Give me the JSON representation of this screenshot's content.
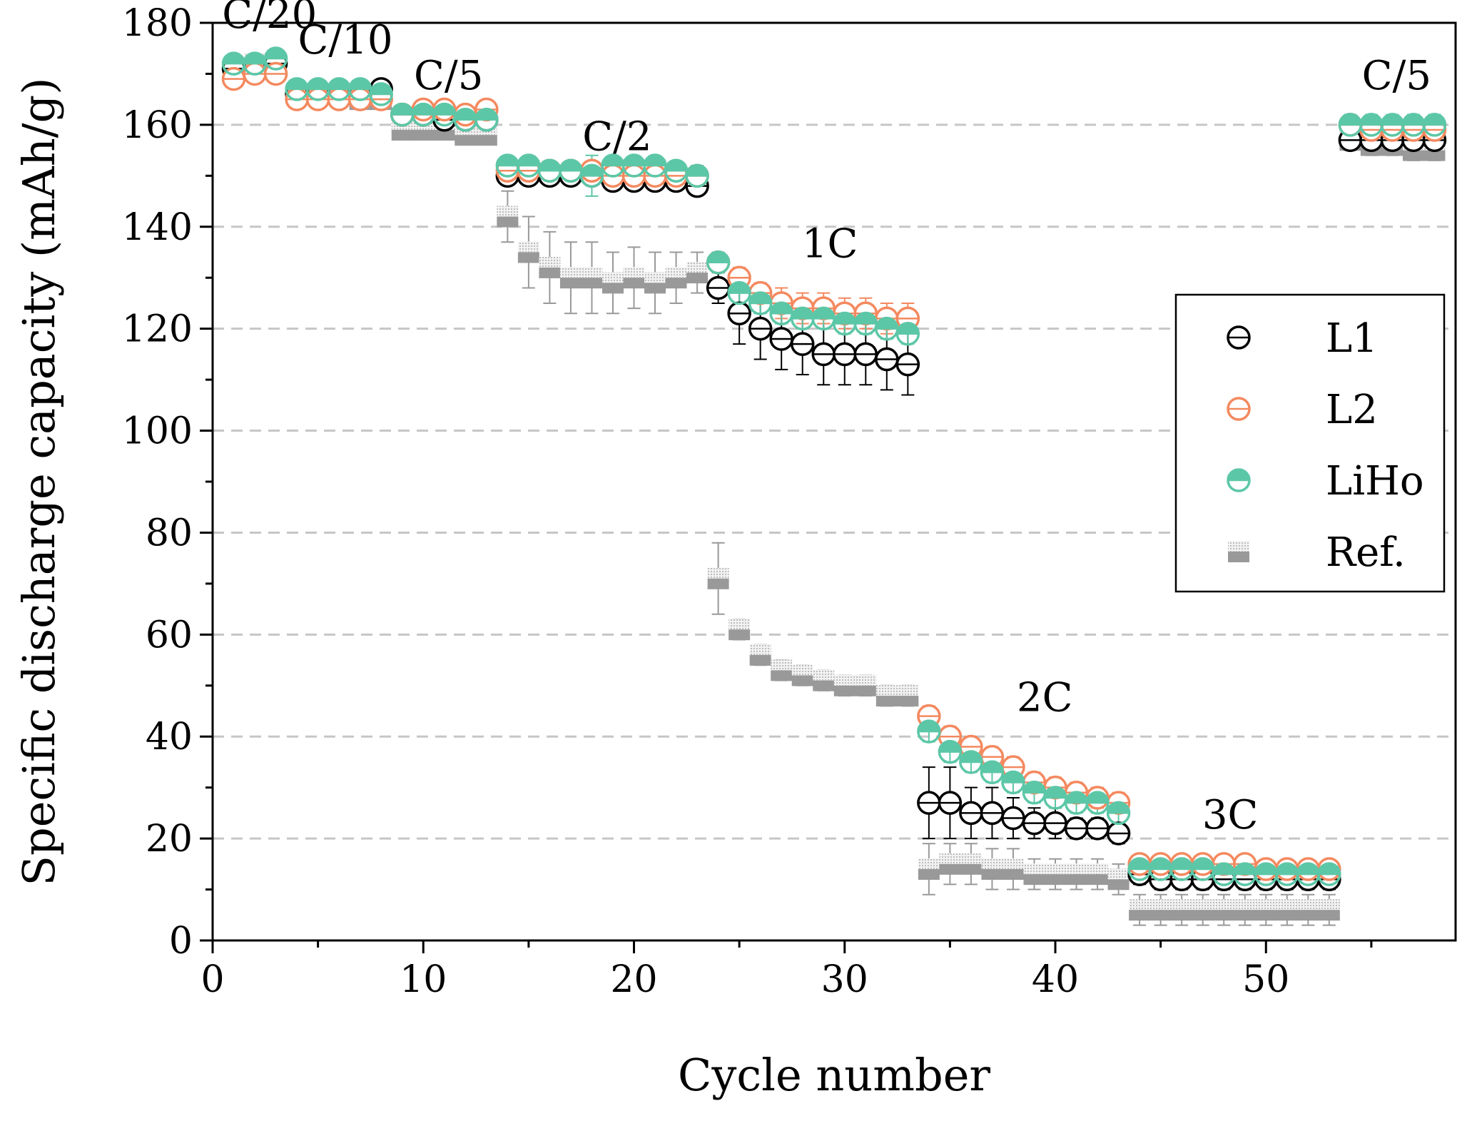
{
  "chart_data": {
    "type": "scatter",
    "xlabel": "Cycle number",
    "ylabel": "Specific discharge capacity (mAh/g)",
    "xlim": [
      0,
      59
    ],
    "ylim": [
      0,
      180
    ],
    "xticks": [
      0,
      10,
      20,
      30,
      40,
      50
    ],
    "yticks": [
      0,
      20,
      40,
      60,
      80,
      100,
      120,
      140,
      160,
      180
    ],
    "grid": "horizontal dashed",
    "legend_position": "right",
    "rate_labels": [
      {
        "text": "C/20",
        "x": 2.7,
        "y": 179
      },
      {
        "text": "C/10",
        "x": 6.3,
        "y": 174
      },
      {
        "text": "C/5",
        "x": 11.2,
        "y": 167
      },
      {
        "text": "C/2",
        "x": 19.2,
        "y": 155
      },
      {
        "text": "1C",
        "x": 29.3,
        "y": 134
      },
      {
        "text": "2C",
        "x": 39.5,
        "y": 45
      },
      {
        "text": "3C",
        "x": 48.3,
        "y": 22
      },
      {
        "text": "C/5",
        "x": 56.2,
        "y": 167
      }
    ],
    "series": [
      {
        "name": "L1",
        "color": "#000000",
        "marker": "circle-open",
        "x": [
          1,
          2,
          3,
          4,
          5,
          6,
          7,
          8,
          9,
          10,
          11,
          12,
          13,
          14,
          15,
          16,
          17,
          18,
          19,
          20,
          21,
          22,
          23,
          24,
          25,
          26,
          27,
          28,
          29,
          30,
          31,
          32,
          33,
          34,
          35,
          36,
          37,
          38,
          39,
          40,
          41,
          42,
          43,
          44,
          45,
          46,
          47,
          48,
          49,
          50,
          51,
          52,
          53,
          54,
          55,
          56,
          57,
          58
        ],
        "values": [
          171,
          171,
          172,
          166,
          166,
          166,
          166,
          167,
          162,
          162,
          161,
          161,
          161,
          150,
          150,
          150,
          150,
          150,
          149,
          149,
          149,
          149,
          148,
          128,
          123,
          120,
          118,
          117,
          115,
          115,
          115,
          114,
          113,
          27,
          27,
          25,
          25,
          24,
          23,
          23,
          22,
          22,
          21,
          13,
          12,
          12,
          12,
          12,
          12,
          12,
          12,
          12,
          12,
          157,
          157,
          157,
          157,
          157
        ],
        "errors": [
          1,
          1,
          1,
          1,
          1,
          1,
          1,
          1,
          1,
          1,
          1,
          1,
          1,
          1,
          1,
          1,
          1,
          1,
          1,
          1,
          1,
          1,
          1,
          3,
          6,
          6,
          6,
          6,
          6,
          6,
          6,
          6,
          6,
          7,
          7,
          5,
          5,
          4,
          3,
          3,
          2,
          2,
          2,
          2,
          2,
          2,
          2,
          2,
          2,
          2,
          2,
          2,
          2,
          1,
          1,
          1,
          1,
          1
        ]
      },
      {
        "name": "L2",
        "color": "#f4895f",
        "marker": "circle-open",
        "x": [
          1,
          2,
          3,
          4,
          5,
          6,
          7,
          8,
          9,
          10,
          11,
          12,
          13,
          14,
          15,
          16,
          17,
          18,
          19,
          20,
          21,
          22,
          23,
          24,
          25,
          26,
          27,
          28,
          29,
          30,
          31,
          32,
          33,
          34,
          35,
          36,
          37,
          38,
          39,
          40,
          41,
          42,
          43,
          44,
          45,
          46,
          47,
          48,
          49,
          50,
          51,
          52,
          53,
          54,
          55,
          56,
          57,
          58
        ],
        "values": [
          169,
          170,
          170,
          165,
          165,
          165,
          165,
          165,
          162,
          163,
          163,
          162,
          163,
          151,
          151,
          151,
          151,
          151,
          150,
          150,
          150,
          150,
          150,
          133,
          130,
          127,
          125,
          124,
          124,
          123,
          123,
          122,
          122,
          44,
          40,
          38,
          36,
          34,
          31,
          30,
          29,
          28,
          27,
          15,
          15,
          15,
          15,
          15,
          15,
          14,
          14,
          14,
          14,
          160,
          159,
          159,
          159,
          159
        ],
        "errors": [
          1,
          1,
          1,
          1,
          1,
          1,
          1,
          1,
          1,
          1,
          1,
          1,
          1,
          1,
          1,
          1,
          1,
          1,
          1,
          1,
          1,
          1,
          1,
          2,
          2,
          2,
          3,
          3,
          3,
          3,
          3,
          3,
          3,
          2,
          2,
          2,
          2,
          2,
          2,
          2,
          2,
          2,
          2,
          1,
          1,
          1,
          1,
          1,
          1,
          1,
          1,
          1,
          1,
          1,
          1,
          1,
          1,
          1
        ]
      },
      {
        "name": "LiHo",
        "color": "#5cc7a7",
        "marker": "circle-half-filled",
        "x": [
          1,
          2,
          3,
          4,
          5,
          6,
          7,
          8,
          9,
          10,
          11,
          12,
          13,
          14,
          15,
          16,
          17,
          18,
          19,
          20,
          21,
          22,
          23,
          24,
          25,
          26,
          27,
          28,
          29,
          30,
          31,
          32,
          33,
          34,
          35,
          36,
          37,
          38,
          39,
          40,
          41,
          42,
          43,
          44,
          45,
          46,
          47,
          48,
          49,
          50,
          51,
          52,
          53,
          54,
          55,
          56,
          57,
          58
        ],
        "values": [
          172,
          172,
          173,
          167,
          167,
          167,
          167,
          166,
          162,
          162,
          162,
          161,
          161,
          152,
          152,
          151,
          151,
          150,
          152,
          152,
          152,
          151,
          150,
          133,
          127,
          125,
          123,
          122,
          122,
          121,
          121,
          120,
          119,
          41,
          37,
          35,
          33,
          31,
          29,
          28,
          27,
          27,
          25,
          14,
          14,
          14,
          14,
          13,
          13,
          13,
          13,
          13,
          13,
          160,
          160,
          160,
          160,
          160
        ],
        "errors": [
          1,
          1,
          1,
          1,
          1,
          1,
          1,
          1,
          1,
          1,
          1,
          1,
          1,
          1,
          1,
          1,
          1,
          4,
          1,
          1,
          1,
          1,
          2,
          2,
          2,
          2,
          2,
          2,
          2,
          2,
          2,
          2,
          2,
          2,
          2,
          2,
          2,
          2,
          2,
          2,
          2,
          2,
          2,
          2,
          2,
          2,
          2,
          2,
          2,
          2,
          2,
          2,
          2,
          2,
          2,
          2,
          2,
          2
        ]
      },
      {
        "name": "Ref.",
        "color": "#999999",
        "marker": "square-half-filled",
        "x": [
          1,
          2,
          3,
          4,
          5,
          6,
          7,
          8,
          9,
          10,
          11,
          12,
          13,
          14,
          15,
          16,
          17,
          18,
          19,
          20,
          21,
          22,
          23,
          24,
          25,
          26,
          27,
          28,
          29,
          30,
          31,
          32,
          33,
          34,
          35,
          36,
          37,
          38,
          39,
          40,
          41,
          42,
          43,
          44,
          45,
          46,
          47,
          48,
          49,
          50,
          51,
          52,
          53,
          54,
          55,
          56,
          57,
          58
        ],
        "values": [
          171,
          172,
          172,
          166,
          166,
          166,
          165,
          165,
          159,
          159,
          159,
          158,
          158,
          142,
          135,
          132,
          130,
          130,
          129,
          130,
          129,
          130,
          131,
          71,
          61,
          56,
          53,
          52,
          51,
          50,
          50,
          48,
          48,
          14,
          15,
          15,
          14,
          14,
          13,
          13,
          13,
          13,
          12,
          6,
          6,
          6,
          6,
          6,
          6,
          6,
          6,
          6,
          6,
          157,
          156,
          156,
          155,
          155
        ],
        "errors": [
          1,
          1,
          1,
          1,
          1,
          1,
          1,
          1,
          1,
          1,
          1,
          1,
          1,
          5,
          7,
          7,
          7,
          7,
          6,
          6,
          6,
          5,
          4,
          7,
          2,
          2,
          2,
          2,
          2,
          2,
          2,
          2,
          2,
          5,
          4,
          4,
          4,
          4,
          3,
          3,
          3,
          3,
          3,
          3,
          3,
          3,
          3,
          3,
          3,
          3,
          3,
          3,
          3,
          2,
          2,
          2,
          2,
          2
        ]
      }
    ]
  }
}
